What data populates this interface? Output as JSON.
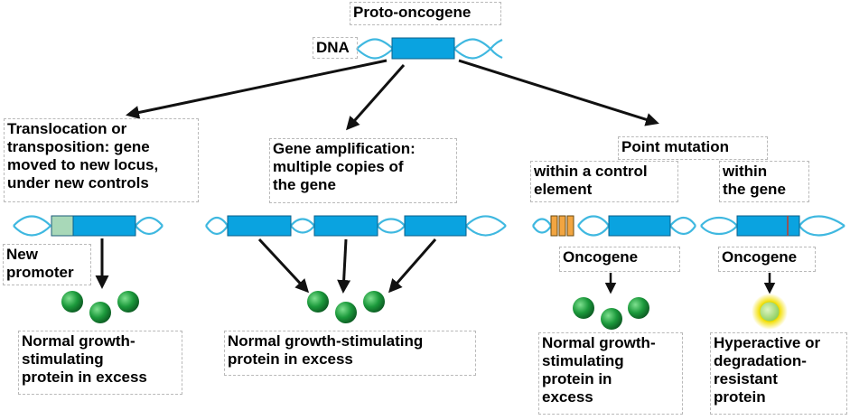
{
  "title": "Proto-oncogene",
  "dna_label": "DNA",
  "branches": {
    "translocation": "Translocation or\ntransposition: gene\nmoved to new locus,\nunder new controls",
    "amplification": "Gene amplification:\nmultiple copies of\nthe gene",
    "point_mutation": "Point mutation",
    "control_element": "within a control\nelement",
    "within_gene": "within\nthe gene"
  },
  "labels": {
    "new_promoter": "New\npromoter",
    "oncogene_1": "Oncogene",
    "oncogene_2": "Oncogene"
  },
  "outcomes": {
    "translocation": "Normal growth-\nstimulating\nprotein in excess",
    "amplification": "Normal growth-stimulating\nprotein in excess",
    "control_element": "Normal growth-\nstimulating\nprotein in\nexcess",
    "within_gene": "Hyperactive or\ndegradation-\nresistant\nprotein"
  },
  "colors": {
    "gene": "#0aa3e0",
    "helix": "#3fb8e0",
    "promoter": "#a8d8b8",
    "control": "#f2a541",
    "protein": "#1c9a3c",
    "hyper_glow": "#f4e21c",
    "arrow": "#111111"
  }
}
